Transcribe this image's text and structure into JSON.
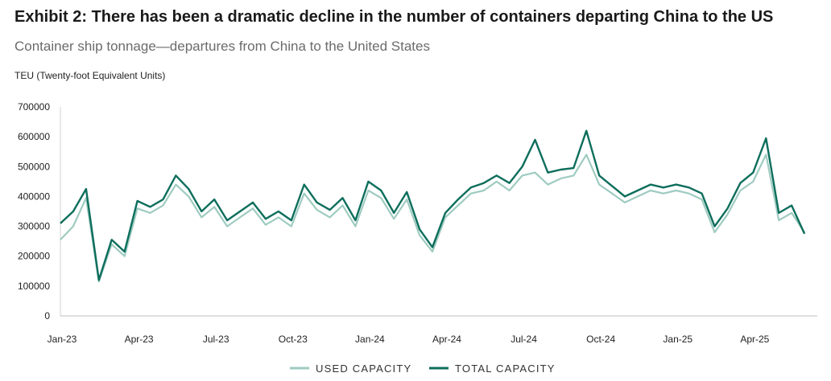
{
  "chart_data": {
    "type": "line",
    "title": "Exhibit 2: There has been a dramatic decline in the number of containers departing China to the US",
    "subtitle": "Container ship tonnage—departures from China to the United States",
    "ylabel": "TEU (Twenty-foot Equivalent Units)",
    "xlabel": "",
    "ylim": [
      0,
      700000
    ],
    "yticks": [
      "700000",
      "600000",
      "500000",
      "400000",
      "300000",
      "200000",
      "100000",
      "0"
    ],
    "xticks": [
      "Jan-23",
      "Apr-23",
      "Jul-23",
      "Oct-23",
      "Jan-24",
      "Apr-24",
      "Jul-24",
      "Oct-24",
      "Jan-25",
      "Apr-25"
    ],
    "grid": false,
    "legend_position": "bottom-center",
    "x_unit": "month",
    "x": [
      "Jan-23",
      "Jan-23",
      "Feb-23",
      "Feb-23",
      "Mar-23",
      "Mar-23",
      "Apr-23",
      "Apr-23",
      "May-23",
      "May-23",
      "Jun-23",
      "Jun-23",
      "Jul-23",
      "Jul-23",
      "Aug-23",
      "Aug-23",
      "Sep-23",
      "Sep-23",
      "Oct-23",
      "Oct-23",
      "Nov-23",
      "Nov-23",
      "Dec-23",
      "Dec-23",
      "Jan-24",
      "Jan-24",
      "Feb-24",
      "Feb-24",
      "Mar-24",
      "Mar-24",
      "Apr-24",
      "Apr-24",
      "May-24",
      "May-24",
      "Jun-24",
      "Jun-24",
      "Jul-24",
      "Jul-24",
      "Aug-24",
      "Aug-24",
      "Sep-24",
      "Sep-24",
      "Oct-24",
      "Oct-24",
      "Nov-24",
      "Nov-24",
      "Dec-24",
      "Dec-24",
      "Jan-25",
      "Jan-25",
      "Feb-25",
      "Feb-25",
      "Mar-25",
      "Mar-25",
      "Apr-25",
      "Apr-25",
      "May-25",
      "May-25",
      "Jun-25"
    ],
    "series": [
      {
        "name": "USED CAPACITY",
        "color": "#9fcbc0",
        "values": [
          255000,
          300000,
          395000,
          115000,
          240000,
          200000,
          360000,
          345000,
          370000,
          440000,
          400000,
          330000,
          365000,
          300000,
          330000,
          360000,
          305000,
          330000,
          300000,
          410000,
          355000,
          330000,
          370000,
          300000,
          420000,
          395000,
          325000,
          390000,
          270000,
          215000,
          330000,
          370000,
          410000,
          420000,
          450000,
          420000,
          470000,
          480000,
          440000,
          460000,
          470000,
          540000,
          440000,
          410000,
          380000,
          400000,
          420000,
          410000,
          420000,
          410000,
          390000,
          280000,
          340000,
          420000,
          450000,
          540000,
          320000,
          345000,
          280000
        ]
      },
      {
        "name": "TOTAL CAPACITY",
        "color": "#0d6e5c",
        "values": [
          310000,
          350000,
          425000,
          120000,
          255000,
          215000,
          385000,
          365000,
          390000,
          470000,
          425000,
          350000,
          390000,
          320000,
          350000,
          380000,
          325000,
          350000,
          320000,
          440000,
          380000,
          355000,
          395000,
          320000,
          450000,
          420000,
          345000,
          415000,
          290000,
          230000,
          345000,
          390000,
          430000,
          445000,
          470000,
          445000,
          500000,
          590000,
          480000,
          490000,
          495000,
          620000,
          470000,
          435000,
          400000,
          420000,
          440000,
          430000,
          440000,
          430000,
          410000,
          300000,
          360000,
          445000,
          480000,
          595000,
          345000,
          370000,
          275000
        ]
      }
    ]
  }
}
